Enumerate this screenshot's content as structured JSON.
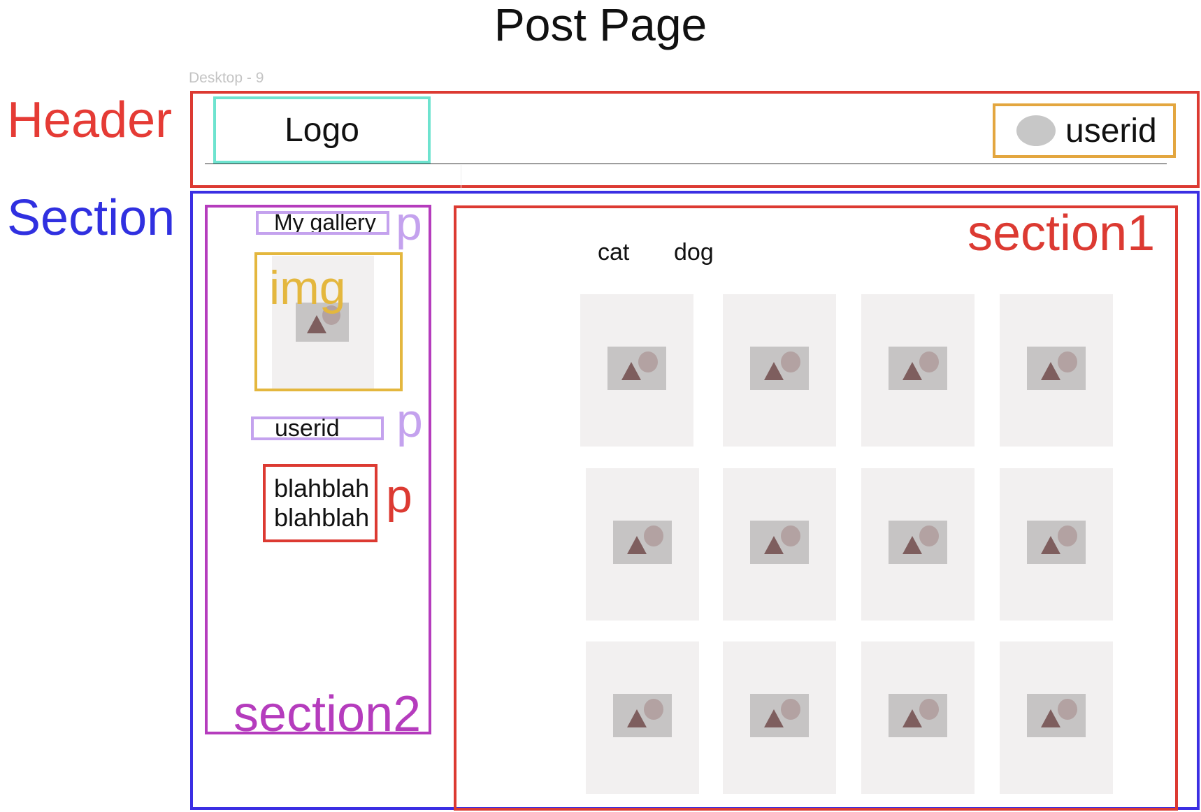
{
  "title": "Post Page",
  "frame_name": "Desktop - 9",
  "labels": {
    "header": "Header",
    "section": "Section",
    "section1": "section1",
    "section2": "section2",
    "p": "p",
    "img": "img"
  },
  "header": {
    "logo": "Logo",
    "userid": "userid"
  },
  "section2": {
    "gallery": "My gallery",
    "userid": "userid",
    "body_line1": "blahblah",
    "body_line2": "blahblah"
  },
  "section1": {
    "tabs": [
      "cat",
      "dog"
    ],
    "grid_rows": 3,
    "grid_cols": 4
  },
  "colors": {
    "header_outline": "#dc3a32",
    "section_outline": "#3b2fe3",
    "logo_outline": "#6ee3cf",
    "user_outline": "#e3a63f",
    "section2_outline": "#b53cbd",
    "p_outline": "#c4a2ee",
    "img_outline": "#e4b73e"
  }
}
